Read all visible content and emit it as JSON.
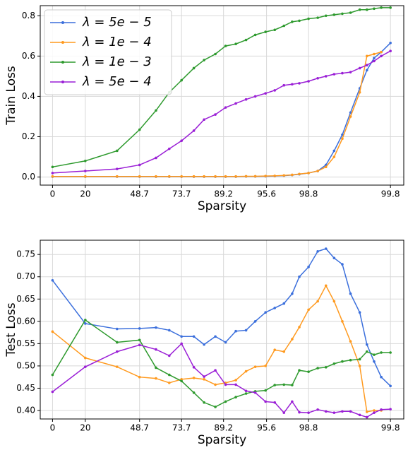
{
  "chart_data": [
    {
      "type": "line",
      "xlabel": "Sparsity",
      "ylabel": "Train Loss",
      "grid": true,
      "legend": "upper left",
      "x": [
        0,
        3.2,
        6.3,
        8.5,
        10.1,
        11.4,
        12.6,
        13.8,
        14.8,
        15.9,
        16.9,
        17.9,
        18.9,
        19.8,
        20.8,
        21.7,
        22.6,
        23.4,
        24.1,
        25.0,
        25.9,
        26.7,
        27.5,
        28.3,
        29.1,
        30.0,
        30.7,
        31.4,
        32.1,
        33.0
      ],
      "xlim": [
        -1.2,
        34.3
      ],
      "ylim": [
        -0.04,
        0.85
      ],
      "xticks": [
        0,
        {
          "value": 3.2,
          "label": "20"
        },
        {
          "value": 8.5,
          "label": "48.7"
        },
        {
          "value": 12.6,
          "label": "73.7"
        },
        {
          "value": 16.7,
          "label": "89.2"
        },
        {
          "value": 20.9,
          "label": "95.6"
        },
        {
          "value": 25.0,
          "label": "98.8"
        },
        {
          "value": 33.0,
          "label": "99.8"
        }
      ],
      "yticks": [
        {
          "value": 0,
          "label": "0.0"
        },
        0.2,
        0.4,
        0.6,
        0.8
      ],
      "series": [
        {
          "name": "λ = 5e − 5",
          "color": "#3b6fdc",
          "values": [
            0.002,
            0.002,
            0.002,
            0.002,
            0.002,
            0.002,
            0.002,
            0.002,
            0.002,
            0.002,
            0.002,
            0.002,
            0.003,
            0.003,
            0.004,
            0.005,
            0.007,
            0.01,
            0.014,
            0.02,
            0.03,
            0.06,
            0.13,
            0.21,
            0.32,
            0.44,
            0.53,
            0.59,
            0.62,
            0.665
          ]
        },
        {
          "name": "λ = 1e − 4",
          "color": "#ff9a1f",
          "values": [
            0.003,
            0.003,
            0.003,
            0.003,
            0.003,
            0.003,
            0.003,
            0.003,
            0.003,
            0.003,
            0.003,
            0.003,
            0.004,
            0.004,
            0.005,
            0.006,
            0.008,
            0.011,
            0.015,
            0.02,
            0.03,
            0.05,
            0.1,
            0.19,
            0.3,
            0.42,
            0.6,
            0.61,
            0.62,
            null
          ]
        },
        {
          "name": "λ = 1e − 3",
          "color": "#2e9a2e",
          "values": [
            0.05,
            0.08,
            0.13,
            0.235,
            0.33,
            0.42,
            0.48,
            0.54,
            0.58,
            0.61,
            0.65,
            0.66,
            0.68,
            0.705,
            0.72,
            0.73,
            0.75,
            0.77,
            0.775,
            0.785,
            0.79,
            0.8,
            0.805,
            0.81,
            0.815,
            0.83,
            0.83,
            0.835,
            0.84,
            0.84
          ]
        },
        {
          "name": "λ = 5e − 4",
          "color": "#9a1fd6",
          "values": [
            0.02,
            0.03,
            0.04,
            0.06,
            0.095,
            0.14,
            0.18,
            0.23,
            0.285,
            0.31,
            0.345,
            0.365,
            0.385,
            0.4,
            0.415,
            0.43,
            0.455,
            0.46,
            0.465,
            0.475,
            0.49,
            0.5,
            0.51,
            0.515,
            0.52,
            0.54,
            0.555,
            0.575,
            0.6,
            0.625
          ]
        }
      ]
    },
    {
      "type": "line",
      "xlabel": "Sparsity",
      "ylabel": "Test Loss",
      "grid": true,
      "x": [
        0,
        3.2,
        6.3,
        8.5,
        10.1,
        11.4,
        12.6,
        13.8,
        14.8,
        15.9,
        16.9,
        17.9,
        18.9,
        19.8,
        20.8,
        21.7,
        22.6,
        23.4,
        24.1,
        25.0,
        25.9,
        26.7,
        27.5,
        28.3,
        29.1,
        30.0,
        30.7,
        31.4,
        32.1,
        33.0
      ],
      "xlim": [
        -1.2,
        34.3
      ],
      "ylim": [
        0.381,
        0.782
      ],
      "xticks": [
        0,
        {
          "value": 3.2,
          "label": "20"
        },
        {
          "value": 8.5,
          "label": "48.7"
        },
        {
          "value": 12.6,
          "label": "73.7"
        },
        {
          "value": 16.7,
          "label": "89.2"
        },
        {
          "value": 20.9,
          "label": "95.6"
        },
        {
          "value": 25.0,
          "label": "98.8"
        },
        {
          "value": 33.0,
          "label": "99.8"
        }
      ],
      "yticks": [
        {
          "value": 0.4,
          "label": "0.40"
        },
        0.45,
        {
          "value": 0.5,
          "label": "0.50"
        },
        0.55,
        {
          "value": 0.6,
          "label": "0.60"
        },
        0.65,
        {
          "value": 0.7,
          "label": "0.70"
        },
        0.75
      ],
      "series": [
        {
          "color": "#3b6fdc",
          "values": [
            0.692,
            0.595,
            0.583,
            0.584,
            0.586,
            0.58,
            0.566,
            0.566,
            0.548,
            0.566,
            0.553,
            0.578,
            0.58,
            0.6,
            0.62,
            0.63,
            0.64,
            0.662,
            0.7,
            0.722,
            0.757,
            0.763,
            0.742,
            0.728,
            0.662,
            0.62,
            0.548,
            0.51,
            0.475,
            0.455
          ]
        },
        {
          "color": "#ff9a1f",
          "values": [
            0.577,
            0.518,
            0.498,
            0.475,
            0.472,
            0.462,
            0.47,
            0.473,
            0.47,
            0.458,
            0.462,
            0.468,
            0.488,
            0.498,
            0.5,
            0.536,
            0.532,
            0.56,
            0.587,
            0.626,
            0.645,
            0.68,
            0.645,
            0.6,
            0.555,
            0.5,
            0.397,
            0.4,
            0.4,
            null
          ]
        },
        {
          "color": "#2e9a2e",
          "values": [
            0.48,
            0.603,
            0.553,
            0.558,
            0.496,
            0.48,
            0.466,
            0.44,
            0.418,
            0.408,
            0.42,
            0.43,
            0.438,
            0.443,
            0.445,
            0.457,
            0.458,
            0.457,
            0.49,
            0.487,
            0.495,
            0.497,
            0.505,
            0.51,
            0.513,
            0.515,
            0.532,
            0.525,
            0.53,
            0.53
          ]
        },
        {
          "color": "#9a1fd6",
          "values": [
            0.442,
            0.498,
            0.532,
            0.547,
            0.537,
            0.523,
            0.55,
            0.497,
            0.476,
            0.49,
            0.458,
            0.458,
            0.444,
            0.44,
            0.42,
            0.418,
            0.395,
            0.42,
            0.396,
            0.395,
            0.402,
            0.398,
            0.395,
            0.398,
            0.398,
            0.39,
            0.385,
            0.395,
            0.402,
            0.403
          ]
        }
      ]
    }
  ]
}
